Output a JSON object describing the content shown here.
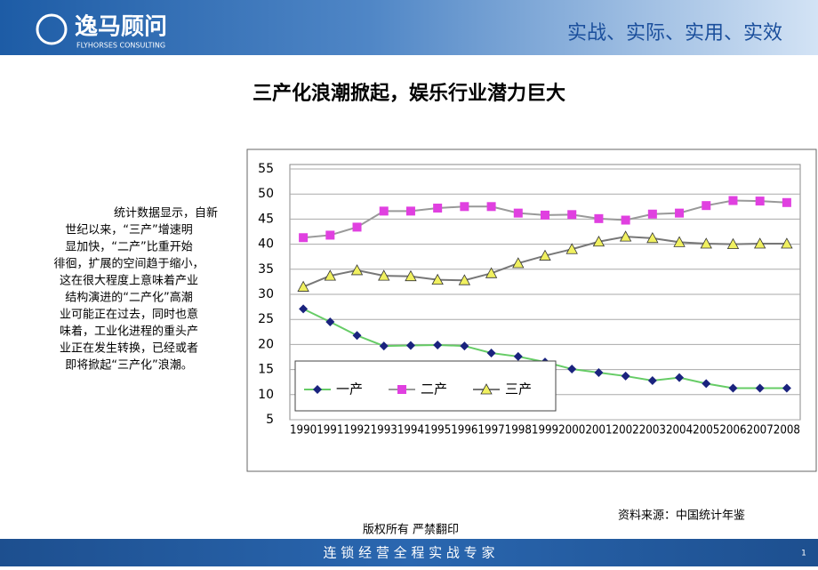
{
  "header": {
    "logo_name": "逸马顾问",
    "logo_subtitle": "FLYHORSES CONSULTING",
    "slogan": "实战、实际、实用、实效"
  },
  "title": "三产化浪潮掀起，娱乐行业潜力巨大",
  "paragraph_lines": [
    "统计数据显示，自新",
    "世纪以来，“三产”增速明",
    "显加快，“二产”比重开始",
    "徘徊，扩展的空间趋于缩小，",
    "这在很大程度上意味着产业",
    "结构演进的“二产化”高潮",
    "业可能正在过去，同时也意",
    "味着，工业化进程的重头产",
    "业正在发生转换，已经或者",
    "即将掀起“三产化”浪潮。"
  ],
  "chart_data": {
    "type": "line",
    "categories": [
      "1990",
      "1991",
      "1992",
      "1993",
      "1994",
      "1995",
      "1996",
      "1997",
      "1998",
      "1999",
      "2000",
      "2001",
      "2002",
      "2003",
      "2004",
      "2005",
      "2006",
      "2007",
      "2008"
    ],
    "series": [
      {
        "name": "一产",
        "color": "#66cc66",
        "marker": "diamond",
        "marker_color": "#1a237e",
        "values": [
          27.1,
          24.5,
          21.8,
          19.7,
          19.8,
          19.9,
          19.7,
          18.3,
          17.6,
          16.5,
          15.1,
          14.4,
          13.7,
          12.8,
          13.4,
          12.2,
          11.3,
          11.3,
          11.3
        ]
      },
      {
        "name": "二产",
        "color": "#999999",
        "marker": "square",
        "marker_color": "#e040e0",
        "values": [
          41.3,
          41.8,
          43.4,
          46.6,
          46.6,
          47.2,
          47.5,
          47.5,
          46.2,
          45.8,
          45.9,
          45.1,
          44.8,
          46.0,
          46.2,
          47.7,
          48.7,
          48.6,
          48.3
        ]
      },
      {
        "name": "三产",
        "color": "#777777",
        "marker": "triangle",
        "marker_color": "#f0f060",
        "values": [
          31.5,
          33.7,
          34.8,
          33.7,
          33.6,
          32.9,
          32.8,
          34.2,
          36.2,
          37.7,
          39.0,
          40.5,
          41.5,
          41.2,
          40.4,
          40.1,
          40.0,
          40.1,
          40.1
        ]
      }
    ],
    "ylim": [
      5,
      55
    ],
    "yticks": [
      5,
      10,
      15,
      20,
      25,
      30,
      35,
      40,
      45,
      50,
      55
    ],
    "grid": true,
    "legend": "lower-left"
  },
  "source": "资料来源：中国统计年鉴",
  "copyright": "版权所有 严禁翻印",
  "footer": "连 锁 经 营 全 程 实 战 专 家",
  "page_number": "1"
}
